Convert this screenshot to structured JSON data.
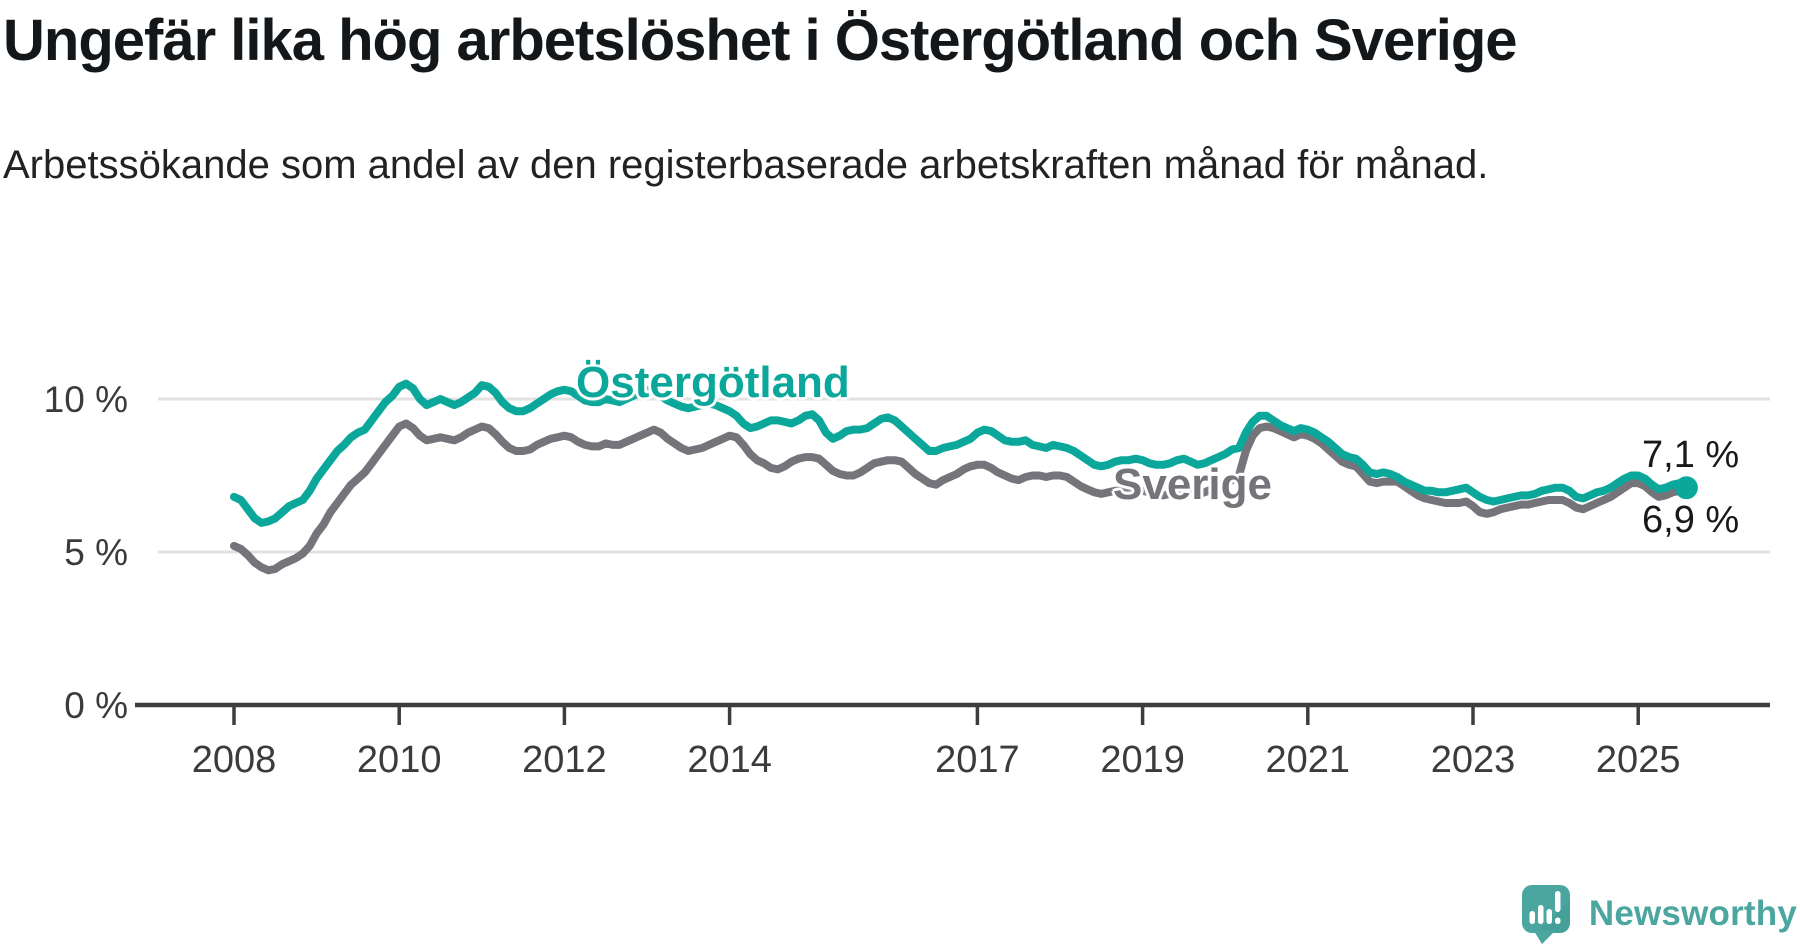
{
  "header": {
    "title": "Ungefär lika hög arbetslöshet i Östergötland och Sverige",
    "subtitle": "Arbetssökande som andel av den registerbaserade arbetskraften månad för månad."
  },
  "chart_data": {
    "type": "line",
    "unit": "%",
    "x_start_year": 2008,
    "x_start_month": 1,
    "points_per_year": 12,
    "x_ticks": [
      2008,
      2010,
      2012,
      2014,
      2017,
      2019,
      2021,
      2023,
      2025
    ],
    "x_tick_labels": [
      "2008",
      "2010",
      "2012",
      "2014",
      "2017",
      "2019",
      "2021",
      "2023",
      "2025"
    ],
    "y_ticks": [
      0,
      5,
      10
    ],
    "y_tick_labels": [
      "0 %",
      "5 %",
      "10 %"
    ],
    "ylim": [
      0,
      11.5
    ],
    "grid": "horizontal",
    "legend_position": "inline-labels",
    "grid_color": "#e2e2e2",
    "axis_color": "#3d3d3d",
    "tick_label_color": "#3b3b3b",
    "series": [
      {
        "name": "Östergötland",
        "label_text": "Östergötland",
        "color": "#0ba79a",
        "end_label": "7,1 %",
        "end_value": 7.1,
        "end_dot": true,
        "values": [
          6.8,
          6.7,
          6.4,
          6.1,
          5.95,
          6.0,
          6.1,
          6.3,
          6.5,
          6.6,
          6.7,
          7.0,
          7.4,
          7.7,
          8.0,
          8.3,
          8.5,
          8.75,
          8.9,
          9.0,
          9.3,
          9.6,
          9.9,
          10.1,
          10.4,
          10.5,
          10.35,
          10.0,
          9.8,
          9.9,
          10.0,
          9.9,
          9.8,
          9.9,
          10.05,
          10.2,
          10.45,
          10.4,
          10.2,
          9.9,
          9.7,
          9.6,
          9.6,
          9.7,
          9.85,
          10.0,
          10.15,
          10.25,
          10.3,
          10.25,
          10.1,
          9.95,
          9.9,
          9.9,
          10.0,
          9.95,
          9.9,
          10.0,
          10.1,
          10.2,
          10.3,
          10.25,
          10.1,
          9.95,
          9.85,
          9.75,
          9.7,
          9.75,
          9.8,
          9.85,
          9.8,
          9.7,
          9.6,
          9.45,
          9.2,
          9.05,
          9.1,
          9.2,
          9.3,
          9.3,
          9.25,
          9.2,
          9.3,
          9.45,
          9.5,
          9.3,
          8.9,
          8.7,
          8.8,
          8.95,
          9.0,
          9.0,
          9.05,
          9.2,
          9.35,
          9.4,
          9.3,
          9.1,
          8.9,
          8.7,
          8.5,
          8.3,
          8.3,
          8.4,
          8.45,
          8.5,
          8.6,
          8.7,
          8.9,
          9.0,
          8.95,
          8.8,
          8.65,
          8.6,
          8.6,
          8.65,
          8.5,
          8.45,
          8.4,
          8.5,
          8.45,
          8.4,
          8.3,
          8.15,
          8.0,
          7.85,
          7.8,
          7.85,
          7.95,
          8.0,
          8.0,
          8.05,
          8.0,
          7.9,
          7.85,
          7.85,
          7.9,
          8.0,
          8.05,
          7.95,
          7.85,
          7.9,
          8.0,
          8.1,
          8.2,
          8.35,
          8.4,
          8.9,
          9.25,
          9.45,
          9.45,
          9.3,
          9.15,
          9.05,
          8.95,
          9.05,
          9.0,
          8.9,
          8.75,
          8.6,
          8.4,
          8.2,
          8.1,
          8.05,
          7.85,
          7.6,
          7.55,
          7.6,
          7.55,
          7.45,
          7.3,
          7.2,
          7.1,
          7.0,
          7.0,
          6.95,
          6.95,
          7.0,
          7.05,
          7.1,
          6.95,
          6.8,
          6.7,
          6.65,
          6.7,
          6.75,
          6.8,
          6.85,
          6.85,
          6.9,
          7.0,
          7.05,
          7.1,
          7.1,
          7.0,
          6.8,
          6.75,
          6.85,
          6.95,
          7.0,
          7.1,
          7.25,
          7.4,
          7.5,
          7.5,
          7.4,
          7.2,
          7.05,
          7.1,
          7.2,
          7.25,
          7.1
        ]
      },
      {
        "name": "Sverige",
        "label_text": "Sverige",
        "color": "#74747a",
        "end_label": "6,9 %",
        "end_value": 6.9,
        "end_dot": false,
        "values": [
          5.2,
          5.1,
          4.9,
          4.65,
          4.5,
          4.4,
          4.45,
          4.6,
          4.7,
          4.8,
          4.95,
          5.2,
          5.6,
          5.9,
          6.3,
          6.6,
          6.9,
          7.2,
          7.4,
          7.6,
          7.9,
          8.2,
          8.5,
          8.8,
          9.1,
          9.2,
          9.05,
          8.8,
          8.65,
          8.7,
          8.75,
          8.7,
          8.65,
          8.75,
          8.9,
          9.0,
          9.1,
          9.05,
          8.85,
          8.6,
          8.4,
          8.3,
          8.3,
          8.35,
          8.5,
          8.6,
          8.7,
          8.75,
          8.8,
          8.75,
          8.6,
          8.5,
          8.45,
          8.45,
          8.55,
          8.5,
          8.5,
          8.6,
          8.7,
          8.8,
          8.9,
          9.0,
          8.9,
          8.7,
          8.55,
          8.4,
          8.3,
          8.35,
          8.4,
          8.5,
          8.6,
          8.7,
          8.8,
          8.75,
          8.5,
          8.2,
          8.0,
          7.9,
          7.75,
          7.7,
          7.8,
          7.95,
          8.05,
          8.1,
          8.1,
          8.05,
          7.85,
          7.65,
          7.55,
          7.5,
          7.5,
          7.6,
          7.75,
          7.9,
          7.95,
          8.0,
          8.0,
          7.95,
          7.75,
          7.55,
          7.4,
          7.25,
          7.2,
          7.35,
          7.45,
          7.55,
          7.7,
          7.8,
          7.85,
          7.85,
          7.75,
          7.6,
          7.5,
          7.4,
          7.35,
          7.45,
          7.5,
          7.5,
          7.45,
          7.5,
          7.5,
          7.45,
          7.3,
          7.15,
          7.05,
          6.95,
          6.9,
          6.95,
          7.0,
          7.0,
          7.0,
          7.05,
          7.0,
          6.95,
          6.9,
          6.85,
          6.9,
          6.95,
          7.0,
          6.95,
          6.9,
          6.95,
          7.05,
          7.15,
          7.25,
          7.35,
          7.5,
          8.3,
          8.8,
          9.05,
          9.1,
          9.05,
          8.95,
          8.85,
          8.75,
          8.85,
          8.8,
          8.7,
          8.55,
          8.35,
          8.15,
          7.95,
          7.85,
          7.8,
          7.55,
          7.3,
          7.25,
          7.3,
          7.3,
          7.3,
          7.15,
          7.0,
          6.85,
          6.75,
          6.7,
          6.65,
          6.6,
          6.6,
          6.6,
          6.65,
          6.5,
          6.3,
          6.25,
          6.3,
          6.4,
          6.45,
          6.5,
          6.55,
          6.55,
          6.6,
          6.65,
          6.7,
          6.7,
          6.7,
          6.6,
          6.45,
          6.4,
          6.5,
          6.6,
          6.7,
          6.8,
          6.95,
          7.1,
          7.25,
          7.25,
          7.15,
          6.95,
          6.8,
          6.85,
          6.95,
          7.0,
          6.9
        ]
      }
    ]
  },
  "branding": {
    "logo_text": "Newsworthy",
    "logo_color": "#4ba6a0",
    "logo_icon": "speech-bubble-bar-chart-exclamation"
  }
}
